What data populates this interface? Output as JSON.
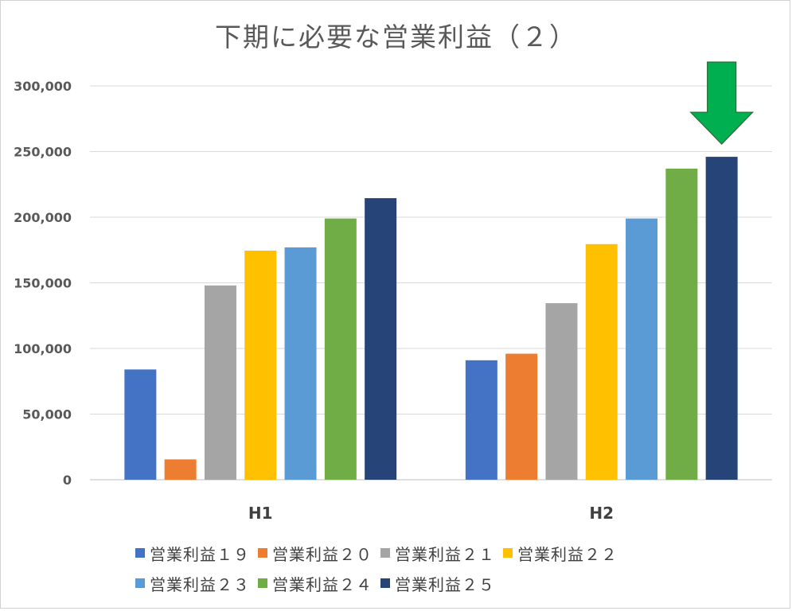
{
  "chart_data": {
    "type": "bar",
    "title": "下期に必要な営業利益（２）",
    "categories": [
      "H1",
      "H2"
    ],
    "ylim": [
      0,
      300000
    ],
    "yticks": [
      "0",
      "50,000",
      "100,000",
      "150,000",
      "200,000",
      "250,000",
      "300,000"
    ],
    "grid": true,
    "legend_placement": "bottom",
    "series": [
      {
        "name": "営業利益１９",
        "color": "#4472C4",
        "values": [
          84000,
          91000
        ]
      },
      {
        "name": "営業利益２０",
        "color": "#ED7D31",
        "values": [
          15500,
          96000
        ]
      },
      {
        "name": "営業利益２１",
        "color": "#A5A5A5",
        "values": [
          148000,
          134500
        ]
      },
      {
        "name": "営業利益２２",
        "color": "#FFC000",
        "values": [
          174500,
          179500
        ]
      },
      {
        "name": "営業利益２３",
        "color": "#5B9BD5",
        "values": [
          177000,
          199000
        ]
      },
      {
        "name": "営業利益２４",
        "color": "#70AD47",
        "values": [
          199000,
          237000
        ]
      },
      {
        "name": "営業利益２５",
        "color": "#264478",
        "values": [
          214500,
          246000
        ]
      }
    ],
    "annotation": {
      "shape": "down-arrow",
      "color": "#00B050",
      "target_category": "H2",
      "target_series": "営業利益２５"
    }
  }
}
